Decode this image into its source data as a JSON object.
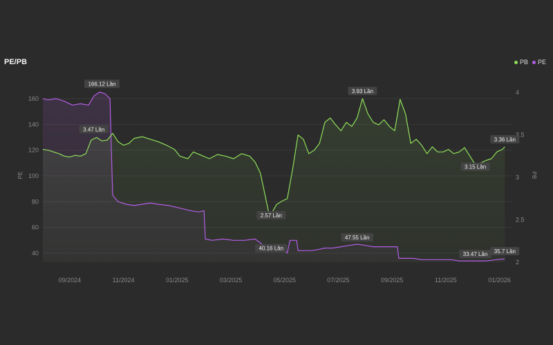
{
  "header": {
    "title": "PE/PB"
  },
  "legend": [
    {
      "name": "PB",
      "color": "#8fe05a"
    },
    {
      "name": "PE",
      "color": "#b45ee6"
    }
  ],
  "chart_data": {
    "type": "line",
    "title": "PE/PB",
    "y_left": {
      "label": "PE",
      "ticks": [
        40,
        60,
        80,
        100,
        120,
        140,
        160
      ],
      "range": [
        33,
        168
      ]
    },
    "y_right": {
      "label": "PB",
      "ticks": [
        "2",
        "2.5",
        "3",
        "3.5",
        "4"
      ],
      "tick_values": [
        2,
        2.5,
        3,
        3.5,
        4
      ],
      "range": [
        2.0,
        4.05
      ]
    },
    "x_ticks": [
      "09/2024",
      "11/2024",
      "01/2025",
      "03/2025",
      "05/2025",
      "07/2025",
      "09/2025",
      "11/2025",
      "01/2026"
    ],
    "x_tick_positions": [
      0.5,
      2.5,
      4.5,
      6.5,
      8.5,
      10.5,
      12.5,
      14.5,
      16.5
    ],
    "x_range": [
      -0.5,
      17.0
    ],
    "series": [
      {
        "name": "PE",
        "color": "#b45ee6",
        "axis": "left",
        "points": [
          [
            -0.5,
            160
          ],
          [
            -0.3,
            159
          ],
          [
            0.0,
            160
          ],
          [
            0.3,
            158
          ],
          [
            0.6,
            155
          ],
          [
            0.9,
            156
          ],
          [
            1.2,
            155
          ],
          [
            1.4,
            162
          ],
          [
            1.6,
            165
          ],
          [
            1.8,
            164
          ],
          [
            2.0,
            160
          ],
          [
            2.05,
            120
          ],
          [
            2.1,
            85
          ],
          [
            2.3,
            80
          ],
          [
            2.6,
            78
          ],
          [
            2.9,
            77
          ],
          [
            3.2,
            78
          ],
          [
            3.5,
            79
          ],
          [
            3.8,
            78
          ],
          [
            4.2,
            77
          ],
          [
            4.6,
            75
          ],
          [
            5.0,
            73
          ],
          [
            5.3,
            72
          ],
          [
            5.5,
            73
          ],
          [
            5.55,
            51
          ],
          [
            5.8,
            50
          ],
          [
            6.2,
            51
          ],
          [
            6.6,
            50
          ],
          [
            7.0,
            50
          ],
          [
            7.4,
            51
          ],
          [
            7.6,
            48
          ],
          [
            7.8,
            45
          ],
          [
            8.1,
            45
          ],
          [
            8.4,
            43
          ],
          [
            8.6,
            40
          ],
          [
            8.7,
            50
          ],
          [
            8.95,
            50
          ],
          [
            9.0,
            42
          ],
          [
            9.2,
            42
          ],
          [
            9.5,
            42
          ],
          [
            9.8,
            43
          ],
          [
            10.0,
            44
          ],
          [
            10.3,
            44
          ],
          [
            10.6,
            45
          ],
          [
            10.9,
            46
          ],
          [
            11.2,
            47
          ],
          [
            11.5,
            46
          ],
          [
            11.8,
            45
          ],
          [
            12.1,
            45
          ],
          [
            12.4,
            45
          ],
          [
            12.7,
            45
          ],
          [
            12.75,
            36
          ],
          [
            13.0,
            36
          ],
          [
            13.3,
            36
          ],
          [
            13.6,
            35
          ],
          [
            14.0,
            35
          ],
          [
            14.4,
            35
          ],
          [
            14.7,
            35
          ],
          [
            15.0,
            34
          ],
          [
            15.3,
            34
          ],
          [
            15.6,
            34
          ],
          [
            16.0,
            34
          ],
          [
            16.4,
            35
          ],
          [
            16.7,
            35.7
          ]
        ]
      },
      {
        "name": "PB",
        "color": "#8fe05a",
        "axis": "right",
        "points": [
          [
            -0.5,
            3.33
          ],
          [
            -0.3,
            3.32
          ],
          [
            -0.1,
            3.3
          ],
          [
            0.1,
            3.28
          ],
          [
            0.3,
            3.25
          ],
          [
            0.5,
            3.24
          ],
          [
            0.7,
            3.26
          ],
          [
            0.9,
            3.25
          ],
          [
            1.1,
            3.28
          ],
          [
            1.3,
            3.44
          ],
          [
            1.5,
            3.47
          ],
          [
            1.7,
            3.43
          ],
          [
            1.9,
            3.44
          ],
          [
            2.1,
            3.52
          ],
          [
            2.3,
            3.42
          ],
          [
            2.5,
            3.38
          ],
          [
            2.7,
            3.4
          ],
          [
            2.9,
            3.46
          ],
          [
            3.2,
            3.48
          ],
          [
            3.5,
            3.45
          ],
          [
            3.8,
            3.42
          ],
          [
            4.1,
            3.38
          ],
          [
            4.4,
            3.33
          ],
          [
            4.6,
            3.25
          ],
          [
            4.9,
            3.22
          ],
          [
            5.1,
            3.3
          ],
          [
            5.4,
            3.26
          ],
          [
            5.7,
            3.22
          ],
          [
            6.0,
            3.27
          ],
          [
            6.3,
            3.25
          ],
          [
            6.6,
            3.22
          ],
          [
            6.9,
            3.28
          ],
          [
            7.2,
            3.25
          ],
          [
            7.4,
            3.18
          ],
          [
            7.6,
            3.05
          ],
          [
            7.8,
            2.75
          ],
          [
            7.9,
            2.6
          ],
          [
            8.0,
            2.57
          ],
          [
            8.2,
            2.68
          ],
          [
            8.4,
            2.72
          ],
          [
            8.6,
            2.75
          ],
          [
            8.8,
            3.1
          ],
          [
            9.0,
            3.5
          ],
          [
            9.2,
            3.45
          ],
          [
            9.4,
            3.28
          ],
          [
            9.6,
            3.32
          ],
          [
            9.8,
            3.4
          ],
          [
            10.0,
            3.65
          ],
          [
            10.2,
            3.7
          ],
          [
            10.4,
            3.62
          ],
          [
            10.6,
            3.55
          ],
          [
            10.8,
            3.65
          ],
          [
            11.0,
            3.6
          ],
          [
            11.2,
            3.7
          ],
          [
            11.4,
            3.93
          ],
          [
            11.6,
            3.75
          ],
          [
            11.8,
            3.65
          ],
          [
            12.0,
            3.62
          ],
          [
            12.2,
            3.68
          ],
          [
            12.4,
            3.6
          ],
          [
            12.6,
            3.55
          ],
          [
            12.8,
            3.92
          ],
          [
            13.0,
            3.75
          ],
          [
            13.2,
            3.4
          ],
          [
            13.4,
            3.45
          ],
          [
            13.6,
            3.38
          ],
          [
            13.8,
            3.28
          ],
          [
            14.0,
            3.36
          ],
          [
            14.2,
            3.3
          ],
          [
            14.4,
            3.3
          ],
          [
            14.6,
            3.33
          ],
          [
            14.8,
            3.28
          ],
          [
            15.0,
            3.3
          ],
          [
            15.2,
            3.35
          ],
          [
            15.4,
            3.25
          ],
          [
            15.6,
            3.15
          ],
          [
            15.8,
            3.17
          ],
          [
            16.0,
            3.2
          ],
          [
            16.2,
            3.22
          ],
          [
            16.4,
            3.3
          ],
          [
            16.6,
            3.33
          ],
          [
            16.7,
            3.36
          ]
        ]
      }
    ],
    "annotations": [
      {
        "text": "166.12 Lần",
        "series": "PE",
        "x": 1.7,
        "y": 166.12,
        "dx": 0,
        "dy": -10
      },
      {
        "text": "3.47 Lần",
        "series": "PB",
        "x": 1.5,
        "y": 3.47,
        "dx": -4,
        "dy": -12
      },
      {
        "text": "40.16 Lần",
        "series": "PE",
        "x": 8.0,
        "y": 40.16,
        "dx": 0,
        "dy": -7
      },
      {
        "text": "2.57 Lần",
        "series": "PB",
        "x": 8.0,
        "y": 2.57,
        "dx": 0,
        "dy": 2
      },
      {
        "text": "3.93 Lần",
        "series": "PB",
        "x": 11.4,
        "y": 3.93,
        "dx": 0,
        "dy": -11
      },
      {
        "text": "47.55 Lần",
        "series": "PE",
        "x": 11.2,
        "y": 47.55,
        "dx": 0,
        "dy": -9
      },
      {
        "text": "3.15 Lần",
        "series": "PB",
        "x": 15.6,
        "y": 3.15,
        "dx": 0,
        "dy": 3
      },
      {
        "text": "33.47 Lần",
        "series": "PE",
        "x": 15.6,
        "y": 33.47,
        "dx": 0,
        "dy": -11
      },
      {
        "text": "3.36 Lần",
        "series": "PB",
        "x": 16.7,
        "y": 3.36,
        "dx": 0,
        "dy": -11
      },
      {
        "text": "35.7 Lần",
        "series": "PE",
        "x": 16.7,
        "y": 35.7,
        "dx": 0,
        "dy": -11
      }
    ],
    "grid": true,
    "legend_position": "top-right"
  }
}
